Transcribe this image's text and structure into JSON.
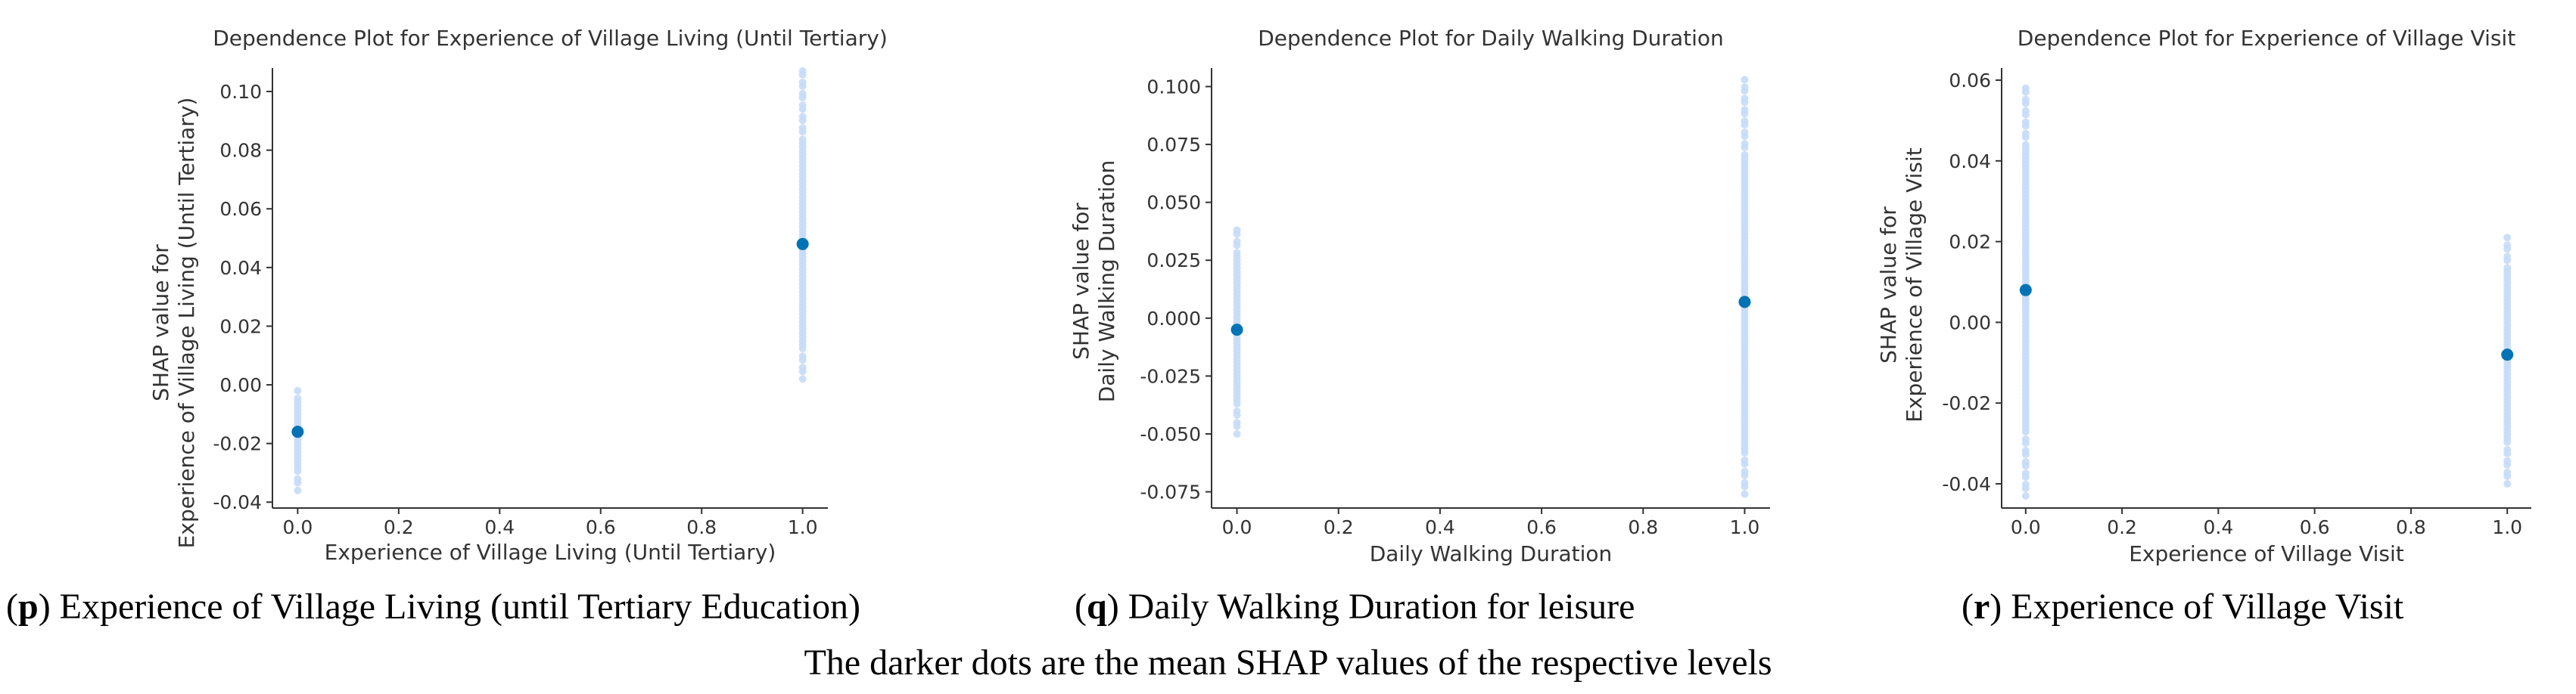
{
  "chart_data": [
    {
      "type": "scatter",
      "letter": "p",
      "title": "Dependence Plot for Experience of Village Living (Until Tertiary)",
      "xlabel": "Experience of Village Living (Until Tertiary)",
      "ylabel_line1": "SHAP value for",
      "ylabel_line2": "Experience of Village Living (Until Tertiary)",
      "xlim": [
        -0.05,
        1.05
      ],
      "ylim": [
        -0.042,
        0.108
      ],
      "xticks": [
        0.0,
        0.2,
        0.4,
        0.6,
        0.8,
        1.0
      ],
      "xtick_labels": [
        "0.0",
        "0.2",
        "0.4",
        "0.6",
        "0.8",
        "1.0"
      ],
      "yticks": [
        -0.04,
        -0.02,
        0.0,
        0.02,
        0.04,
        0.06,
        0.08,
        0.1
      ],
      "ytick_labels": [
        "-0.04",
        "-0.02",
        "0.00",
        "0.02",
        "0.04",
        "0.06",
        "0.08",
        "0.10"
      ],
      "point_color": "#c6dcf8",
      "mean_color": "#0072b5",
      "series": [
        {
          "x": 0.0,
          "min": -0.036,
          "max": -0.002,
          "mean": -0.016
        },
        {
          "x": 1.0,
          "min": 0.002,
          "max": 0.107,
          "mean": 0.048
        }
      ],
      "caption": "Experience of Village Living (until Tertiary Education)"
    },
    {
      "type": "scatter",
      "letter": "q",
      "title": "Dependence Plot for Daily Walking Duration",
      "xlabel": "Daily Walking Duration",
      "ylabel_line1": "SHAP value for",
      "ylabel_line2": "Daily Walking Duration",
      "xlim": [
        -0.05,
        1.05
      ],
      "ylim": [
        -0.082,
        0.108
      ],
      "xticks": [
        0.0,
        0.2,
        0.4,
        0.6,
        0.8,
        1.0
      ],
      "xtick_labels": [
        "0.0",
        "0.2",
        "0.4",
        "0.6",
        "0.8",
        "1.0"
      ],
      "yticks": [
        -0.075,
        -0.05,
        -0.025,
        0.0,
        0.025,
        0.05,
        0.075,
        0.1
      ],
      "ytick_labels": [
        "-0.075",
        "-0.050",
        "-0.025",
        "0.000",
        "0.025",
        "0.050",
        "0.075",
        "0.100"
      ],
      "point_color": "#c6dcf8",
      "mean_color": "#0072b5",
      "series": [
        {
          "x": 0.0,
          "min": -0.05,
          "max": 0.038,
          "mean": -0.005
        },
        {
          "x": 1.0,
          "min": -0.076,
          "max": 0.103,
          "mean": 0.007
        }
      ],
      "caption": "Daily Walking Duration for leisure"
    },
    {
      "type": "scatter",
      "letter": "r",
      "title": "Dependence Plot for Experience of Village Visit",
      "xlabel": "Experience of Village Visit",
      "ylabel_line1": "SHAP value for",
      "ylabel_line2": "Experience of Village Visit",
      "xlim": [
        -0.05,
        1.05
      ],
      "ylim": [
        -0.046,
        0.063
      ],
      "xticks": [
        0.0,
        0.2,
        0.4,
        0.6,
        0.8,
        1.0
      ],
      "xtick_labels": [
        "0.0",
        "0.2",
        "0.4",
        "0.6",
        "0.8",
        "1.0"
      ],
      "yticks": [
        -0.04,
        -0.02,
        0.0,
        0.02,
        0.04,
        0.06
      ],
      "ytick_labels": [
        "-0.04",
        "-0.02",
        "0.00",
        "0.02",
        "0.04",
        "0.06"
      ],
      "point_color": "#c6dcf8",
      "mean_color": "#0072b5",
      "series": [
        {
          "x": 0.0,
          "min": -0.043,
          "max": 0.058,
          "mean": 0.008
        },
        {
          "x": 1.0,
          "min": -0.04,
          "max": 0.021,
          "mean": -0.008
        }
      ],
      "caption": "Experience of Village Visit"
    }
  ],
  "footnote": "The darker dots are the mean SHAP values of the respective levels"
}
